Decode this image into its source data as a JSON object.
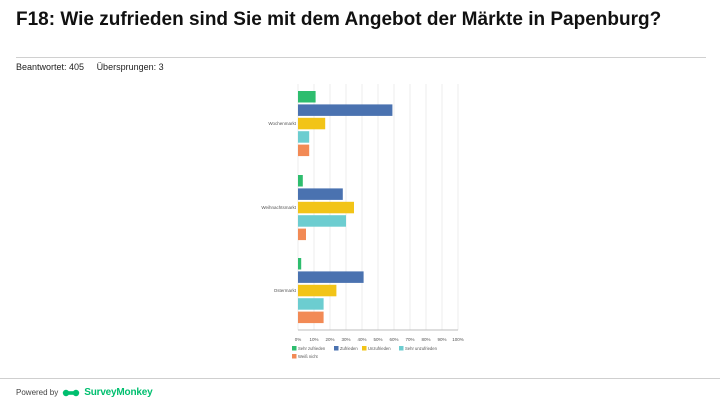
{
  "page": {
    "title": "F18: Wie zufrieden sind Sie mit dem Angebot der Märkte in Papenburg?",
    "answered": "Beantwortet: 405",
    "skipped": "Übersprungen: 3"
  },
  "footer": {
    "powered": "Powered by",
    "brand": "SurveyMonkey",
    "logo_icon": "surveymonkey-logo-icon"
  },
  "chart_data": {
    "type": "bar",
    "orientation": "horizontal",
    "title": "",
    "categories": [
      "Wochenmarkt",
      "Weihnachtsmarkt",
      "Ostermarkt"
    ],
    "series": [
      {
        "name": "Sehr zufrieden",
        "color": "#2ebd6e",
        "values": [
          11,
          3,
          2
        ]
      },
      {
        "name": "Zufrieden",
        "color": "#4a72b0",
        "values": [
          59,
          28,
          41
        ]
      },
      {
        "name": "Unzufrieden",
        "color": "#f2c417",
        "values": [
          17,
          35,
          24
        ]
      },
      {
        "name": "Sehr unzufrieden",
        "color": "#6ccdd0",
        "values": [
          7,
          30,
          16
        ]
      },
      {
        "name": "Weiß nicht",
        "color": "#f28a55",
        "values": [
          7,
          5,
          16
        ]
      }
    ],
    "xticks": [
      "0%",
      "10%",
      "20%",
      "30%",
      "40%",
      "50%",
      "60%",
      "70%",
      "80%",
      "90%",
      "100%"
    ],
    "xlim": [
      0,
      100
    ],
    "grid": true,
    "legend": "bottom"
  }
}
